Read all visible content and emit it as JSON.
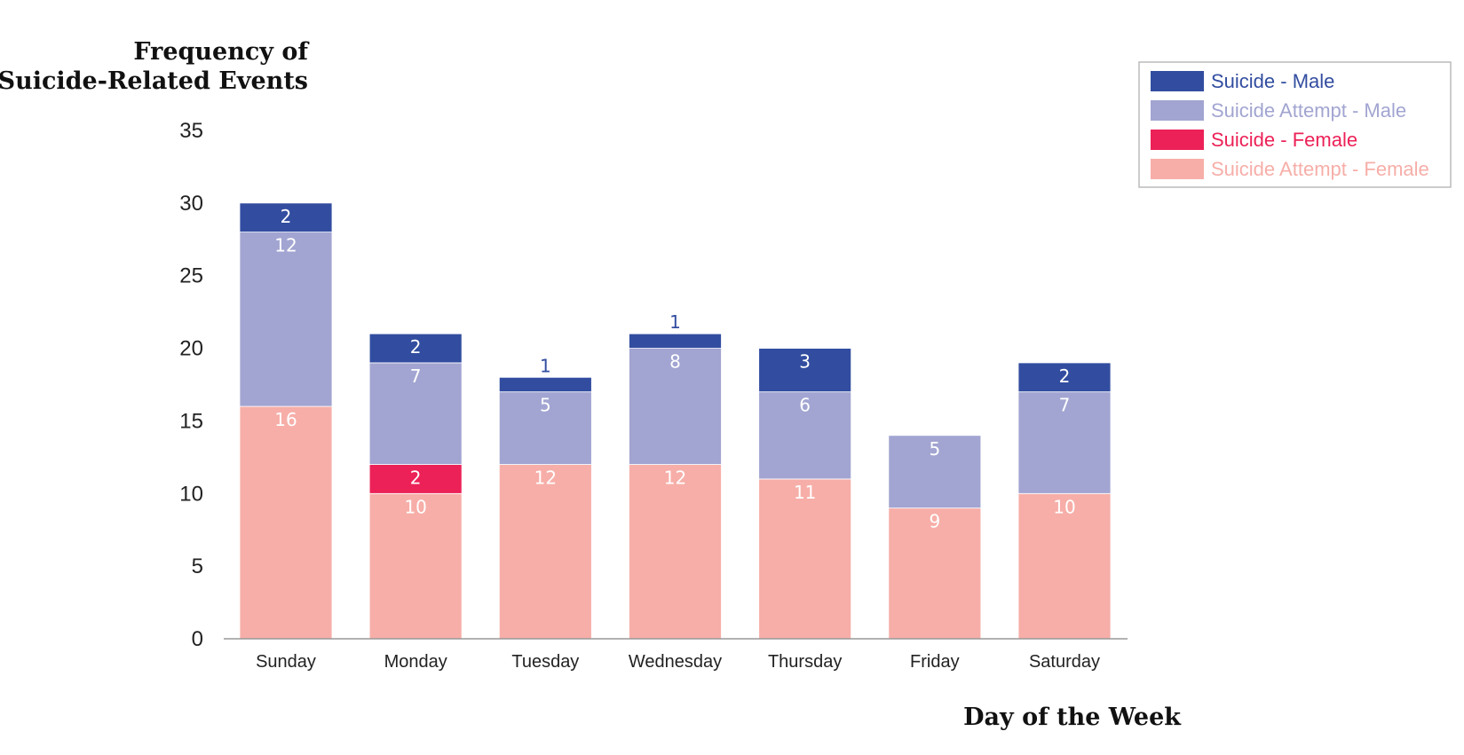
{
  "chart_data": {
    "type": "bar",
    "stacked": true,
    "ylabel": [
      "Frequency of",
      "Suicide-Related Events"
    ],
    "xlabel": "Day of the Week",
    "ylim": [
      0,
      35
    ],
    "yticks": [
      "0",
      "5",
      "10",
      "15",
      "20",
      "25",
      "30",
      "35"
    ],
    "categories": [
      "Sunday",
      "Monday",
      "Tuesday",
      "Wednesday",
      "Thursday",
      "Friday",
      "Saturday"
    ],
    "series": [
      {
        "name": "Suicide Attempt - Female",
        "color": "#f7aea8",
        "label_color": "#ffffff",
        "values": [
          16,
          10,
          12,
          12,
          11,
          9,
          10
        ]
      },
      {
        "name": "Suicide - Female",
        "color": "#ec2157",
        "label_color": "#ffffff",
        "values": [
          0,
          2,
          0,
          0,
          0,
          0,
          0
        ]
      },
      {
        "name": "Suicide Attempt - Male",
        "color": "#a2a5d1",
        "label_color": "#ffffff",
        "values": [
          12,
          7,
          5,
          8,
          6,
          5,
          7
        ]
      },
      {
        "name": "Suicide - Male",
        "color": "#324da0",
        "label_color": "#ffffff",
        "values": [
          2,
          2,
          1,
          1,
          3,
          0,
          2
        ]
      }
    ],
    "legend": {
      "position": "top-right",
      "order": [
        "Suicide - Male",
        "Suicide Attempt - Male",
        "Suicide - Female",
        "Suicide Attempt - Female"
      ]
    },
    "grid": false
  }
}
